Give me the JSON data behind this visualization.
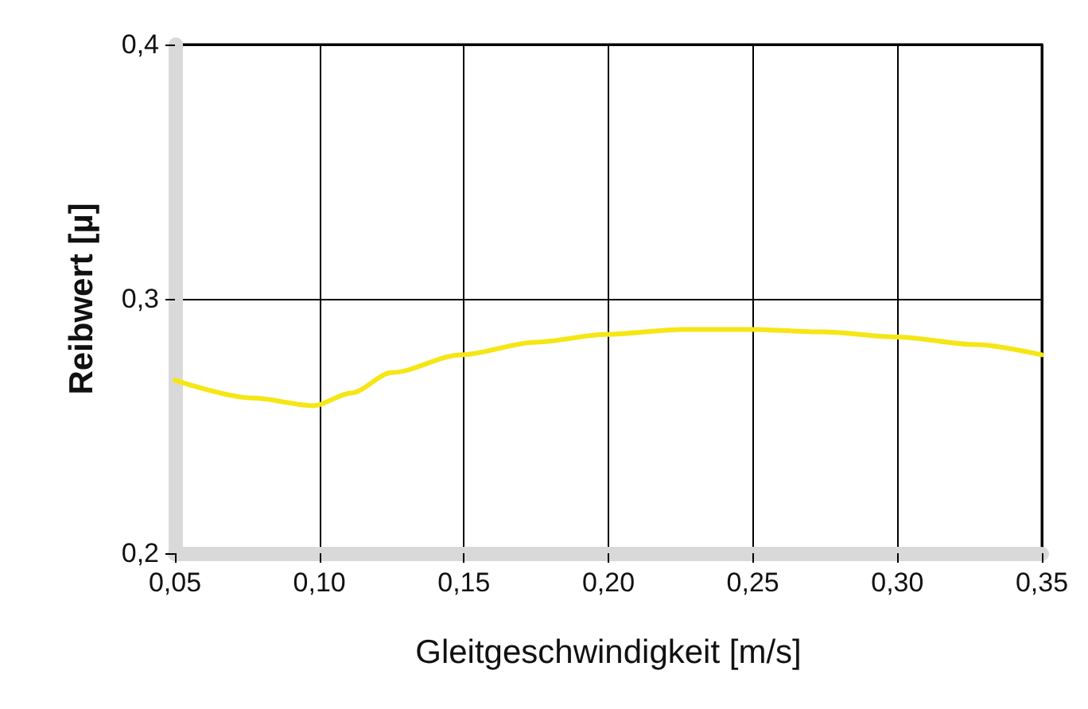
{
  "chart_data": {
    "type": "line",
    "xlabel": "Gleitgeschwindigkeit [m/s]",
    "ylabel": "Reibwert [µ]",
    "xlim": [
      0.05,
      0.35
    ],
    "ylim": [
      0.2,
      0.4
    ],
    "xticks": [
      {
        "value": 0.05,
        "label": "0,05"
      },
      {
        "value": 0.1,
        "label": "0,10"
      },
      {
        "value": 0.15,
        "label": "0,15"
      },
      {
        "value": 0.2,
        "label": "0,20"
      },
      {
        "value": 0.25,
        "label": "0,25"
      },
      {
        "value": 0.3,
        "label": "0,30"
      },
      {
        "value": 0.35,
        "label": "0,35"
      }
    ],
    "yticks": [
      {
        "value": 0.2,
        "label": "0,2"
      },
      {
        "value": 0.3,
        "label": "0,3"
      },
      {
        "value": 0.4,
        "label": "0,4"
      }
    ],
    "grid": true,
    "marker": "none",
    "line_style": "solid",
    "series": [
      {
        "color": "#f5e614",
        "x": [
          0.05,
          0.077,
          0.098,
          0.111,
          0.125,
          0.149,
          0.175,
          0.199,
          0.226,
          0.25,
          0.274,
          0.3,
          0.327,
          0.35
        ],
        "values": [
          0.268,
          0.261,
          0.258,
          0.263,
          0.271,
          0.278,
          0.283,
          0.286,
          0.288,
          0.288,
          0.287,
          0.285,
          0.282,
          0.278
        ]
      }
    ]
  }
}
